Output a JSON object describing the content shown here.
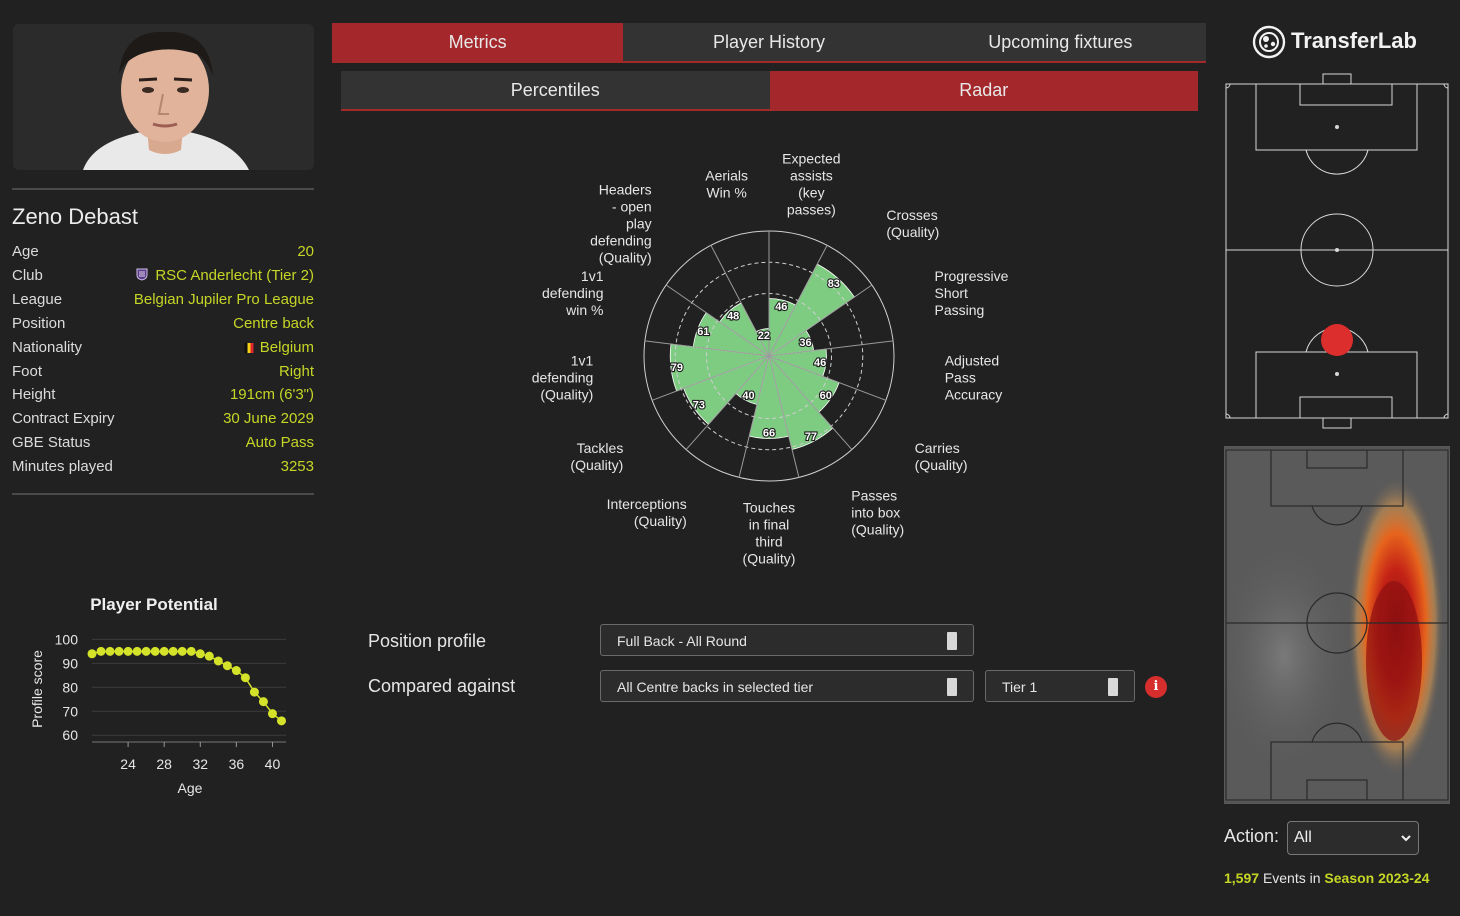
{
  "player": {
    "name": "Zeno Debast",
    "fields": [
      {
        "label": "Age",
        "value": "20"
      },
      {
        "label": "Club",
        "value": "RSC Anderlecht (Tier 2)",
        "icon": "club-crest-icon"
      },
      {
        "label": "League",
        "value": "Belgian Jupiler Pro League"
      },
      {
        "label": "Position",
        "value": "Centre back"
      },
      {
        "label": "Nationality",
        "value": "Belgium",
        "icon": "belgium-flag-icon"
      },
      {
        "label": "Foot",
        "value": "Right"
      },
      {
        "label": "Height",
        "value": "191cm (6'3\")"
      },
      {
        "label": "Contract Expiry",
        "value": "30 June 2029"
      },
      {
        "label": "GBE Status",
        "value": "Auto Pass"
      },
      {
        "label": "Minutes played",
        "value": "3253"
      }
    ]
  },
  "tabs": {
    "main": [
      {
        "label": "Metrics",
        "active": true
      },
      {
        "label": "Player History",
        "active": false
      },
      {
        "label": "Upcoming fixtures",
        "active": false
      }
    ],
    "sub": [
      {
        "label": "Percentiles",
        "active": false
      },
      {
        "label": "Radar",
        "active": true
      }
    ]
  },
  "radar": {
    "color": "#7ecb82",
    "metrics": [
      {
        "label": [
          "Expected",
          "assists",
          "(key",
          "passes)"
        ],
        "value": 46
      },
      {
        "label": [
          "Crosses",
          "(Quality)"
        ],
        "value": 83
      },
      {
        "label": [
          "Progressive",
          "Short",
          "Passing"
        ],
        "value": 36
      },
      {
        "label": [
          "Adjusted",
          "Pass",
          "Accuracy"
        ],
        "value": 46
      },
      {
        "label": [
          "Carries",
          "(Quality)"
        ],
        "value": 60
      },
      {
        "label": [
          "Passes",
          "into box",
          "(Quality)"
        ],
        "value": 77
      },
      {
        "label": [
          "Touches",
          "in final",
          "third",
          "(Quality)"
        ],
        "value": 66
      },
      {
        "label": [
          "Interceptions",
          "(Quality)"
        ],
        "value": 40
      },
      {
        "label": [
          "Tackles",
          "(Quality)"
        ],
        "value": 73
      },
      {
        "label": [
          "1v1",
          "defending",
          "(Quality)"
        ],
        "value": 79
      },
      {
        "label": [
          "1v1",
          "defending",
          "win %"
        ],
        "value": 61
      },
      {
        "label": [
          "Headers",
          "- open",
          "play",
          "defending",
          "(Quality)"
        ],
        "value": 48
      },
      {
        "label": [
          "Aerials",
          "Win %"
        ],
        "value": 22
      }
    ]
  },
  "form": {
    "position_profile_label": "Position profile",
    "position_profile_value": "Full Back - All Round",
    "compared_against_label": "Compared against",
    "compared_against_value": "All Centre backs in selected tier",
    "tier_value": "Tier 1",
    "info_icon": "info-icon",
    "info_glyph": "i"
  },
  "brand": {
    "name": "TransferLab",
    "icon": "transferlab-logo-icon"
  },
  "chart_data": {
    "type": "scatter",
    "title": "Player Potential",
    "xlabel": "Age",
    "ylabel": "Profile score",
    "xticks": [
      24,
      28,
      32,
      36,
      40
    ],
    "yticks": [
      60,
      70,
      80,
      90,
      100
    ],
    "xlim": [
      20,
      41.5
    ],
    "ylim": [
      58,
      101
    ],
    "grid": true,
    "color": "#d4e22a",
    "x": [
      20,
      21,
      22,
      23,
      24,
      25,
      26,
      27,
      28,
      29,
      30,
      31,
      32,
      33,
      34,
      35,
      36,
      37,
      38,
      39,
      40,
      41
    ],
    "y": [
      94,
      95,
      95,
      95,
      95,
      95,
      95,
      95,
      95,
      95,
      95,
      95,
      94,
      93,
      91,
      89,
      87,
      84,
      78,
      74,
      69,
      66
    ]
  },
  "pitch": {
    "marker_color": "#dd2e2e",
    "action_label": "Action:",
    "action_value": "All",
    "events_count": "1,597",
    "events_mid": "Events in",
    "events_season": "Season 2023-24"
  }
}
